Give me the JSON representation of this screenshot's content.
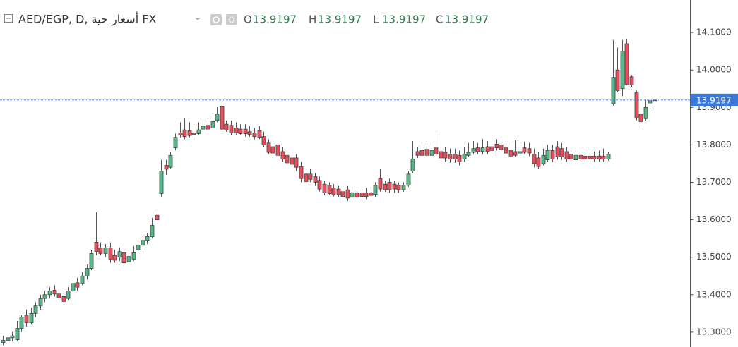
{
  "chart_data": {
    "type": "candlestick",
    "title": "AED/EGP, D, أسعار حية FX",
    "ohlc_labels": [
      "O",
      "H",
      "L",
      "C"
    ],
    "open": [
      13.272,
      13.278,
      13.285,
      13.28,
      13.31,
      13.345,
      13.325,
      13.35,
      13.37,
      13.39,
      13.4,
      13.412,
      13.402,
      13.395,
      13.39,
      13.41,
      13.432,
      13.43,
      13.45,
      13.47,
      13.54,
      13.525,
      13.51,
      13.525,
      13.505,
      13.5,
      13.512,
      13.488,
      13.495,
      13.52,
      13.532,
      13.545,
      13.555,
      13.612,
      13.67,
      13.745,
      13.74,
      13.792,
      13.832,
      13.84,
      13.838,
      13.832,
      13.83,
      13.842,
      13.852,
      13.845,
      13.865,
      13.902,
      13.855,
      13.852,
      13.845,
      13.842,
      13.842,
      13.835,
      13.832,
      13.838,
      13.822,
      13.805,
      13.795,
      13.8,
      13.782,
      13.772,
      13.765,
      13.765,
      13.742,
      13.722,
      13.722,
      13.715,
      13.705,
      13.695,
      13.692,
      13.685,
      13.682,
      13.675,
      13.68,
      13.66,
      13.672,
      13.672,
      13.672,
      13.672,
      13.668,
      13.71,
      13.695,
      13.7,
      13.695,
      13.692,
      13.68,
      13.692,
      13.73,
      13.782,
      13.785,
      13.788,
      13.772,
      13.792,
      13.782,
      13.78,
      13.775,
      13.775,
      13.772,
      13.762,
      13.772,
      13.78,
      13.792,
      13.782,
      13.795,
      13.795,
      13.802,
      13.8,
      13.792,
      13.785,
      13.782,
      13.778,
      13.792,
      13.79,
      13.775,
      13.765,
      13.75,
      13.76,
      13.785,
      13.795,
      13.79,
      13.782,
      13.775,
      13.76,
      13.772,
      13.77,
      13.77,
      13.77,
      13.77,
      13.77,
      13.762,
      13.91,
      14.0,
      13.95,
      14.07,
      13.982,
      13.94,
      13.882,
      13.87,
      13.912,
      13.9197
    ],
    "high": [
      13.29,
      13.292,
      13.3,
      13.33,
      13.345,
      13.36,
      13.365,
      13.38,
      13.4,
      13.41,
      13.42,
      13.425,
      13.415,
      13.41,
      13.42,
      13.44,
      13.445,
      13.46,
      13.48,
      13.52,
      13.62,
      13.54,
      13.535,
      13.54,
      13.52,
      13.525,
      13.53,
      13.51,
      13.53,
      13.545,
      13.555,
      13.565,
      13.605,
      13.622,
      13.76,
      13.76,
      13.78,
      13.83,
      13.86,
      13.87,
      13.86,
      13.85,
      13.86,
      13.87,
      13.865,
      13.88,
      13.9,
      13.925,
      13.865,
      13.865,
      13.86,
      13.855,
      13.855,
      13.85,
      13.845,
      13.85,
      13.835,
      13.815,
      13.805,
      13.81,
      13.795,
      13.785,
      13.78,
      13.775,
      13.755,
      13.735,
      13.735,
      13.725,
      13.715,
      13.705,
      13.7,
      13.695,
      13.69,
      13.685,
      13.69,
      13.68,
      13.682,
      13.682,
      13.685,
      13.68,
      13.7,
      13.735,
      13.705,
      13.71,
      13.705,
      13.7,
      13.7,
      13.73,
      13.81,
      13.795,
      13.8,
      13.805,
      13.8,
      13.83,
      13.795,
      13.795,
      13.79,
      13.79,
      13.785,
      13.795,
      13.805,
      13.81,
      13.805,
      13.815,
      13.81,
      13.82,
      13.815,
      13.815,
      13.805,
      13.8,
      13.812,
      13.8,
      13.808,
      13.805,
      13.79,
      13.78,
      13.79,
      13.8,
      13.8,
      13.81,
      13.805,
      13.795,
      13.785,
      13.785,
      13.785,
      13.782,
      13.782,
      13.782,
      13.785,
      13.79,
      13.78,
      14.08,
      14.06,
      14.08,
      14.082,
      13.985,
      13.945,
      13.89,
      13.92,
      13.93,
      13.9197
    ],
    "low": [
      13.265,
      13.27,
      13.275,
      13.275,
      13.3,
      13.315,
      13.32,
      13.34,
      13.36,
      13.38,
      13.39,
      13.395,
      13.385,
      13.378,
      13.385,
      13.405,
      13.41,
      13.425,
      13.44,
      13.465,
      13.505,
      13.505,
      13.5,
      13.485,
      13.485,
      13.49,
      13.478,
      13.48,
      13.49,
      13.51,
      13.52,
      13.535,
      13.55,
      13.595,
      13.66,
      13.72,
      13.735,
      13.785,
      13.82,
      13.815,
      13.82,
      13.82,
      13.825,
      13.835,
      13.835,
      13.84,
      13.86,
      13.835,
      13.835,
      13.825,
      13.825,
      13.825,
      13.822,
      13.822,
      13.815,
      13.815,
      13.795,
      13.775,
      13.77,
      13.765,
      13.755,
      13.745,
      13.74,
      13.73,
      13.7,
      13.69,
      13.7,
      13.69,
      13.675,
      13.665,
      13.665,
      13.662,
      13.66,
      13.655,
      13.65,
      13.652,
      13.652,
      13.655,
      13.655,
      13.655,
      13.66,
      13.675,
      13.675,
      13.672,
      13.672,
      13.672,
      13.675,
      13.688,
      13.725,
      13.765,
      13.765,
      13.765,
      13.765,
      13.765,
      13.755,
      13.755,
      13.752,
      13.752,
      13.745,
      13.755,
      13.768,
      13.775,
      13.775,
      13.775,
      13.775,
      13.775,
      13.785,
      13.78,
      13.77,
      13.765,
      13.768,
      13.77,
      13.775,
      13.77,
      13.74,
      13.735,
      13.745,
      13.755,
      13.755,
      13.76,
      13.76,
      13.755,
      13.755,
      13.755,
      13.755,
      13.755,
      13.755,
      13.755,
      13.755,
      13.755,
      13.758,
      13.905,
      13.94,
      13.93,
      13.96,
      13.955,
      13.865,
      13.85,
      13.865,
      13.895,
      13.9197
    ],
    "close": [
      13.278,
      13.285,
      13.29,
      13.31,
      13.34,
      13.325,
      13.35,
      13.37,
      13.39,
      13.4,
      13.41,
      13.402,
      13.392,
      13.382,
      13.41,
      13.43,
      13.42,
      13.45,
      13.47,
      13.51,
      13.515,
      13.51,
      13.525,
      13.495,
      13.492,
      13.515,
      13.485,
      13.502,
      13.512,
      13.532,
      13.545,
      13.555,
      13.585,
      13.6,
      13.73,
      13.735,
      13.772,
      13.82,
      13.826,
      13.822,
      13.825,
      13.828,
      13.84,
      13.85,
      13.842,
      13.862,
      13.882,
      13.842,
      13.84,
      13.832,
      13.832,
      13.83,
      13.83,
      13.828,
      13.822,
      13.82,
      13.8,
      13.78,
      13.778,
      13.772,
      13.762,
      13.752,
      13.748,
      13.74,
      13.71,
      13.702,
      13.708,
      13.7,
      13.682,
      13.672,
      13.67,
      13.668,
      13.668,
      13.662,
      13.658,
      13.672,
      13.66,
      13.662,
      13.662,
      13.665,
      13.692,
      13.682,
      13.68,
      13.68,
      13.682,
      13.68,
      13.692,
      13.722,
      13.762,
      13.772,
      13.772,
      13.772,
      13.785,
      13.775,
      13.765,
      13.765,
      13.762,
      13.762,
      13.755,
      13.775,
      13.78,
      13.79,
      13.782,
      13.792,
      13.782,
      13.785,
      13.792,
      13.788,
      13.778,
      13.77,
      13.772,
      13.782,
      13.78,
      13.778,
      13.75,
      13.742,
      13.772,
      13.785,
      13.762,
      13.768,
      13.768,
      13.762,
      13.762,
      13.772,
      13.762,
      13.762,
      13.762,
      13.762,
      13.762,
      13.762,
      13.775,
      13.98,
      13.945,
      14.05,
      13.962,
      13.96,
      13.872,
      13.862,
      13.9,
      13.918,
      13.9197
    ],
    "up_color": "#53b987",
    "down_color": "#eb4d5c",
    "price_line_color": "#3c78d8",
    "ylim": [
      13.264,
      14.1868
    ],
    "yticks": [
      {
        "value": 13.3,
        "label": "13.3000"
      },
      {
        "value": 13.4,
        "label": "13.4000"
      },
      {
        "value": 13.5,
        "label": "13.5000"
      },
      {
        "value": 13.6,
        "label": "13.6000"
      },
      {
        "value": 13.7,
        "label": "13.7000"
      },
      {
        "value": 13.8,
        "label": "13.8000"
      },
      {
        "value": 13.9,
        "label": "13.9000"
      },
      {
        "value": 14.0,
        "label": "14.0000"
      },
      {
        "value": 14.1,
        "label": "14.1000"
      }
    ],
    "grid": false
  }
}
